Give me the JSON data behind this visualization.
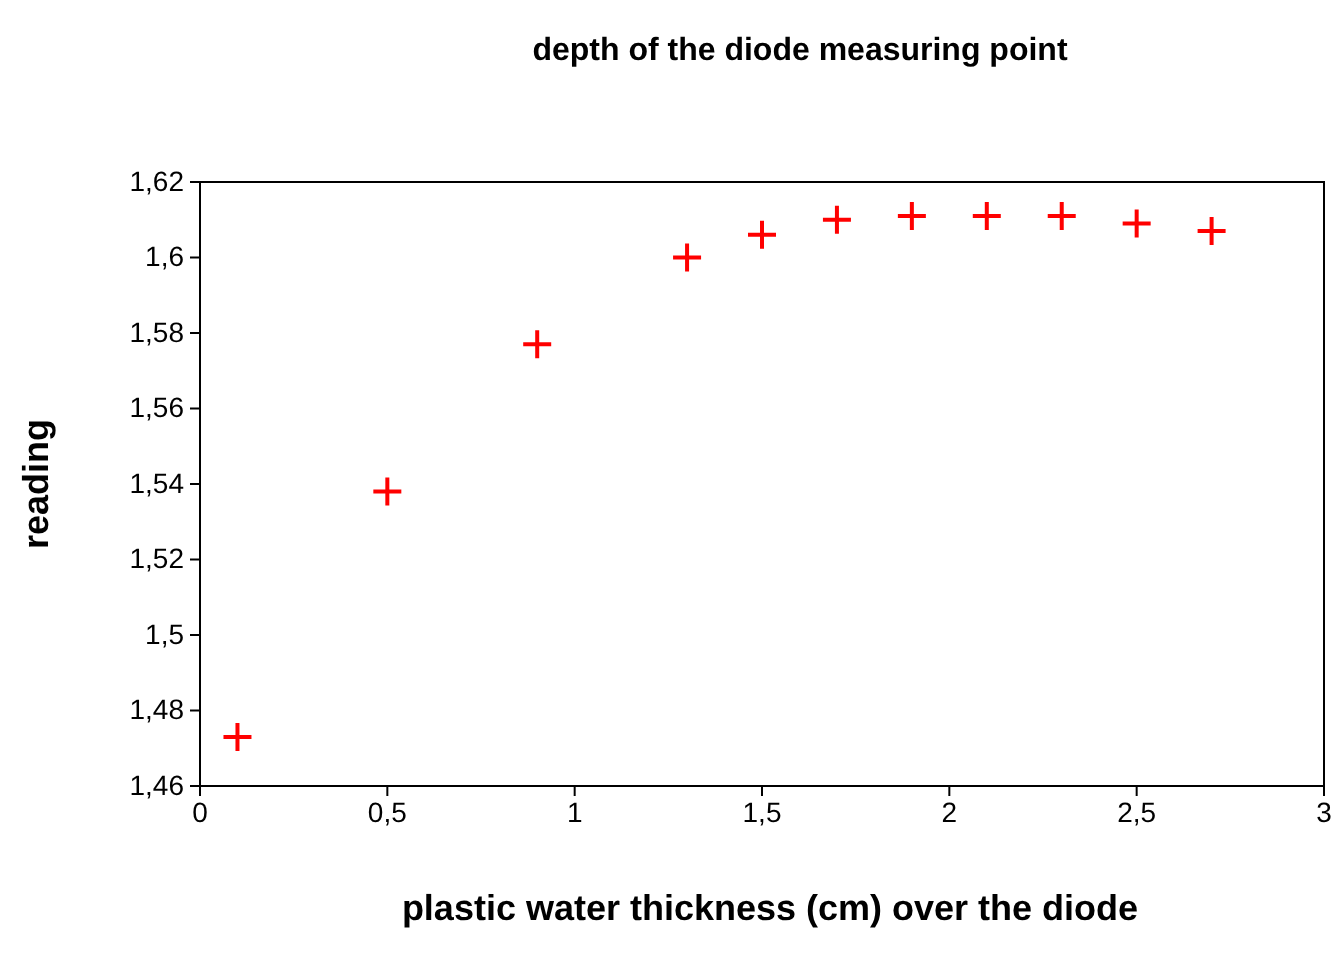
{
  "chart_data": {
    "type": "scatter",
    "title": "depth of the diode measuring point",
    "xlabel": "plastic water thickness (cm) over the diode",
    "ylabel": "reading",
    "x": [
      0.1,
      0.5,
      0.9,
      1.3,
      1.5,
      1.7,
      1.9,
      2.1,
      2.3,
      2.5,
      2.7
    ],
    "series": [
      {
        "color": "#ff0000",
        "values": [
          1.473,
          1.538,
          1.577,
          1.6,
          1.606,
          1.61,
          1.611,
          1.611,
          1.611,
          1.609,
          1.607
        ]
      }
    ],
    "xlim": [
      0,
      3
    ],
    "ylim": [
      1.46,
      1.62
    ],
    "xticks": [
      0,
      {
        "value": 0.5,
        "label": "0,5"
      },
      1,
      {
        "value": 1.5,
        "label": "1,5"
      },
      2,
      {
        "value": 2.5,
        "label": "2,5"
      },
      3
    ],
    "yticks": [
      {
        "value": 1.46,
        "label": "1,46"
      },
      {
        "value": 1.48,
        "label": "1,48"
      },
      {
        "value": 1.5,
        "label": "1,5"
      },
      {
        "value": 1.52,
        "label": "1,52"
      },
      {
        "value": 1.54,
        "label": "1,54"
      },
      {
        "value": 1.56,
        "label": "1,56"
      },
      {
        "value": 1.58,
        "label": "1,58"
      },
      {
        "value": 1.6,
        "label": "1,6"
      },
      {
        "value": 1.62,
        "label": "1,62"
      }
    ],
    "marker": "cross",
    "grid": false
  }
}
